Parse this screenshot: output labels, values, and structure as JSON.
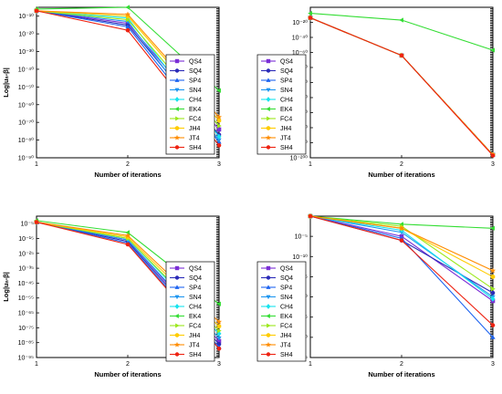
{
  "chart_data": [
    {
      "type": "line",
      "xlabel": "Number of iterations",
      "ylabel": "Log|uₙ-β|",
      "x": [
        1,
        2,
        3
      ],
      "x_ticks": [
        "1",
        "2",
        "3"
      ],
      "y_log": true,
      "ylim": [
        -90,
        -5
      ],
      "y_ticks": [
        -10,
        -20,
        -30,
        -40,
        -50,
        -60,
        -70,
        -80,
        -90
      ],
      "y_tick_labels": [
        "10⁻¹⁰",
        "10⁻²⁰",
        "10⁻³⁰",
        "10⁻⁴⁰",
        "10⁻⁵⁰",
        "10⁻⁶⁰",
        "10⁻⁷⁰",
        "10⁻⁸⁰",
        "10⁻⁹⁰"
      ],
      "legend_position": "right",
      "series": [
        {
          "name": "QS4",
          "color": "#7b2fd6",
          "marker": "square",
          "values": [
            -7,
            -14,
            -74
          ]
        },
        {
          "name": "SQ4",
          "color": "#2b2bb8",
          "marker": "circle",
          "values": [
            -7,
            -15,
            -77
          ]
        },
        {
          "name": "SP4",
          "color": "#1e64f0",
          "marker": "triangle-up",
          "values": [
            -7,
            -16,
            -81
          ]
        },
        {
          "name": "SN4",
          "color": "#1e96f0",
          "marker": "triangle-down",
          "values": [
            -7,
            -13,
            -80
          ]
        },
        {
          "name": "CH4",
          "color": "#16e3ee",
          "marker": "diamond",
          "values": [
            -7,
            -11,
            -78
          ]
        },
        {
          "name": "EK4",
          "color": "#33dd33",
          "marker": "triangle-left",
          "values": [
            -6,
            -5,
            -52
          ]
        },
        {
          "name": "FC4",
          "color": "#9be81a",
          "marker": "triangle-right",
          "values": [
            -7,
            -12,
            -72
          ]
        },
        {
          "name": "JH4",
          "color": "#ffcc00",
          "marker": "hexagon",
          "values": [
            -7,
            -10,
            -69
          ]
        },
        {
          "name": "JT4",
          "color": "#ff8c00",
          "marker": "star",
          "values": [
            -7,
            -9,
            -67
          ]
        },
        {
          "name": "SH4",
          "color": "#ee2211",
          "marker": "circle",
          "values": [
            -7,
            -18,
            -83
          ]
        }
      ]
    },
    {
      "type": "line",
      "xlabel": "Number of iterations",
      "ylabel": "Log|uₙ-β|",
      "x": [
        1,
        2,
        3
      ],
      "x_ticks": [
        "1",
        "2",
        "3"
      ],
      "y_log": true,
      "ylim": [
        -200,
        0
      ],
      "y_ticks": [
        -20,
        -40,
        -60,
        -80,
        -100,
        -120,
        -140,
        -160,
        -180,
        -200
      ],
      "y_tick_labels": [
        "10⁻²⁰",
        "10⁻⁴⁰",
        "10⁻⁶⁰",
        "10⁻⁸⁰",
        "10⁻¹⁰⁰",
        "10⁻¹²⁰",
        "10⁻¹⁴⁰",
        "10⁻¹⁶⁰",
        "10⁻¹⁸⁰",
        "10⁻²⁰⁰"
      ],
      "legend_position": "right",
      "series": [
        {
          "name": "QS4",
          "color": "#7b2fd6",
          "marker": "square",
          "values": [
            -14,
            -64,
            -196
          ]
        },
        {
          "name": "SQ4",
          "color": "#2b2bb8",
          "marker": "circle",
          "values": [
            -14,
            -64,
            -196
          ]
        },
        {
          "name": "SP4",
          "color": "#1e64f0",
          "marker": "triangle-up",
          "values": [
            -14,
            -64,
            -196
          ]
        },
        {
          "name": "SN4",
          "color": "#1e96f0",
          "marker": "triangle-down",
          "values": [
            -14,
            -64,
            -196
          ]
        },
        {
          "name": "CH4",
          "color": "#16e3ee",
          "marker": "diamond",
          "values": [
            -14,
            -64,
            -196
          ]
        },
        {
          "name": "EK4",
          "color": "#33dd33",
          "marker": "triangle-left",
          "values": [
            -8,
            -17,
            -57
          ]
        },
        {
          "name": "FC4",
          "color": "#9be81a",
          "marker": "triangle-right",
          "values": [
            -14,
            -64,
            -196
          ]
        },
        {
          "name": "JH4",
          "color": "#ffcc00",
          "marker": "hexagon",
          "values": [
            -14,
            -64,
            -196
          ]
        },
        {
          "name": "JT4",
          "color": "#ff8c00",
          "marker": "star",
          "values": [
            -14,
            -64,
            -196
          ]
        },
        {
          "name": "SH4",
          "color": "#ee2211",
          "marker": "circle",
          "values": [
            -14,
            -64,
            -197
          ]
        }
      ]
    },
    {
      "type": "line",
      "xlabel": "Number of iterations",
      "ylabel": "Log|uₙ-β|",
      "x": [
        1,
        2,
        3
      ],
      "x_ticks": [
        "1",
        "2",
        "3"
      ],
      "y_log": true,
      "ylim": [
        -95,
        0
      ],
      "y_ticks": [
        -5,
        -15,
        -25,
        -35,
        -45,
        -55,
        -65,
        -75,
        -85,
        -95
      ],
      "y_tick_labels": [
        "10⁻⁵",
        "10⁻¹⁵",
        "10⁻²⁵",
        "10⁻³⁵",
        "10⁻⁴⁵",
        "10⁻⁵⁵",
        "10⁻⁶⁵",
        "10⁻⁷⁵",
        "10⁻⁸⁵",
        "10⁻⁹⁵"
      ],
      "legend_position": "right",
      "series": [
        {
          "name": "QS4",
          "color": "#7b2fd6",
          "marker": "square",
          "values": [
            -4,
            -16,
            -84
          ]
        },
        {
          "name": "SQ4",
          "color": "#2b2bb8",
          "marker": "circle",
          "values": [
            -4,
            -17,
            -86
          ]
        },
        {
          "name": "SP4",
          "color": "#1e64f0",
          "marker": "triangle-up",
          "values": [
            -4,
            -18,
            -88
          ]
        },
        {
          "name": "SN4",
          "color": "#1e96f0",
          "marker": "triangle-down",
          "values": [
            -4,
            -16,
            -82
          ]
        },
        {
          "name": "CH4",
          "color": "#16e3ee",
          "marker": "diamond",
          "values": [
            -4,
            -15,
            -79
          ]
        },
        {
          "name": "EK4",
          "color": "#33dd33",
          "marker": "triangle-left",
          "values": [
            -3,
            -11,
            -59
          ]
        },
        {
          "name": "FC4",
          "color": "#9be81a",
          "marker": "triangle-right",
          "values": [
            -4,
            -15,
            -77
          ]
        },
        {
          "name": "JH4",
          "color": "#ffcc00",
          "marker": "hexagon",
          "values": [
            -4,
            -14,
            -74
          ]
        },
        {
          "name": "JT4",
          "color": "#ff8c00",
          "marker": "star",
          "values": [
            -4,
            -13,
            -71
          ]
        },
        {
          "name": "SH4",
          "color": "#ee2211",
          "marker": "circle",
          "values": [
            -4,
            -19,
            -89
          ]
        }
      ]
    },
    {
      "type": "line",
      "xlabel": "Number of iterations",
      "ylabel": "Log|uₙ-β|",
      "x": [
        1,
        2,
        3
      ],
      "x_ticks": [
        "1",
        "2",
        "3"
      ],
      "y_log": true,
      "ylim": [
        -35,
        0
      ],
      "y_ticks": [
        -5,
        -10,
        -15,
        -20,
        -25,
        -30,
        -35
      ],
      "y_tick_labels": [
        "10⁻⁵",
        "10⁻¹⁰",
        "10⁻¹⁵",
        "10⁻²⁰",
        "10⁻²⁵",
        "10⁻³⁰",
        "10⁻³⁵"
      ],
      "legend_position": "right",
      "series": [
        {
          "name": "QS4",
          "color": "#7b2fd6",
          "marker": "square",
          "values": [
            0,
            -5,
            -21
          ]
        },
        {
          "name": "SQ4",
          "color": "#2b2bb8",
          "marker": "circle",
          "values": [
            0,
            -6,
            -19
          ]
        },
        {
          "name": "SP4",
          "color": "#1e64f0",
          "marker": "triangle-up",
          "values": [
            0,
            -5.5,
            -30
          ]
        },
        {
          "name": "SN4",
          "color": "#1e96f0",
          "marker": "triangle-down",
          "values": [
            0,
            -4,
            -20
          ]
        },
        {
          "name": "CH4",
          "color": "#16e3ee",
          "marker": "diamond",
          "values": [
            0,
            -3.5,
            -20.5
          ]
        },
        {
          "name": "EK4",
          "color": "#33dd33",
          "marker": "triangle-left",
          "values": [
            0,
            -2,
            -3
          ]
        },
        {
          "name": "FC4",
          "color": "#9be81a",
          "marker": "triangle-right",
          "values": [
            0,
            -2.5,
            -18
          ]
        },
        {
          "name": "JH4",
          "color": "#ffcc00",
          "marker": "hexagon",
          "values": [
            0,
            -3,
            -15
          ]
        },
        {
          "name": "JT4",
          "color": "#ff8c00",
          "marker": "star",
          "values": [
            0,
            -3,
            -13.5
          ]
        },
        {
          "name": "SH4",
          "color": "#ee2211",
          "marker": "circle",
          "values": [
            0,
            -6,
            -27
          ]
        }
      ]
    }
  ]
}
